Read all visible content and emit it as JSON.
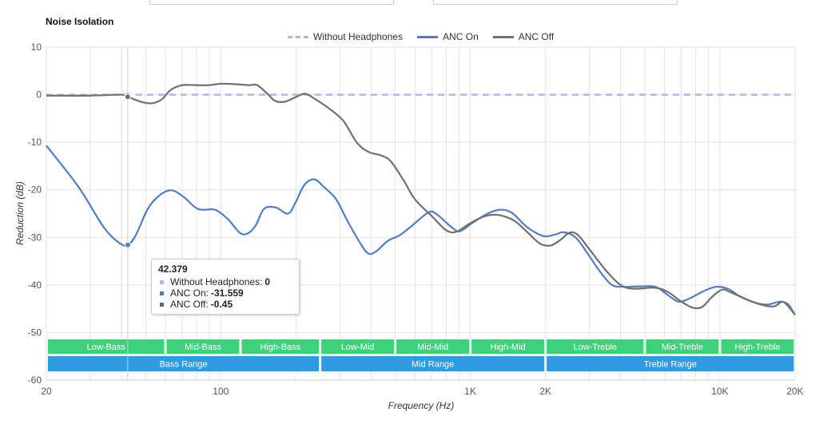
{
  "title": "Noise Isolation",
  "tooltip": {
    "x": "42.379",
    "rows": [
      {
        "label": "Without Headphones:",
        "value": "0",
        "color": "#aab8f2"
      },
      {
        "label": "ANC On:",
        "value": "-31.559",
        "color": "#4f7fc2"
      },
      {
        "label": "ANC Off:",
        "value": "-0.45",
        "color": "#666666"
      }
    ]
  },
  "chart_data": {
    "type": "line",
    "title": "Noise Isolation",
    "xlabel": "Frequency (Hz)",
    "ylabel": "Reduction (dB)",
    "xscale": "log",
    "xlim": [
      20,
      20000
    ],
    "ylim": [
      -60,
      10
    ],
    "xticks": [
      {
        "v": 20,
        "label": "20"
      },
      {
        "v": 100,
        "label": "100"
      },
      {
        "v": 1000,
        "label": "1K"
      },
      {
        "v": 2000,
        "label": "2K"
      },
      {
        "v": 10000,
        "label": "10K"
      },
      {
        "v": 20000,
        "label": "20K"
      }
    ],
    "yticks": [
      10,
      0,
      -10,
      -20,
      -30,
      -40,
      -50,
      -60
    ],
    "legend_position": "top-center",
    "series": [
      {
        "name": "Without Headphones",
        "color": "#aab8f2",
        "dashed": true,
        "points": [
          [
            20,
            0
          ],
          [
            20000,
            0
          ]
        ]
      },
      {
        "name": "ANC On",
        "color": "#4f7fc2",
        "dashed": false,
        "points": [
          [
            20,
            -10.7
          ],
          [
            27,
            -19.5
          ],
          [
            34,
            -27.9
          ],
          [
            39.3,
            -31.2
          ],
          [
            42.4,
            -31.6
          ],
          [
            45.7,
            -29.5
          ],
          [
            51,
            -24
          ],
          [
            57,
            -21.1
          ],
          [
            63.5,
            -20.1
          ],
          [
            71,
            -21.5
          ],
          [
            79,
            -23.7
          ],
          [
            85,
            -24.2
          ],
          [
            95,
            -24.2
          ],
          [
            107,
            -26.2
          ],
          [
            119,
            -29
          ],
          [
            128,
            -29.2
          ],
          [
            138,
            -27.5
          ],
          [
            149,
            -24
          ],
          [
            166,
            -23.7
          ],
          [
            186,
            -25
          ],
          [
            200,
            -22.5
          ],
          [
            216,
            -19
          ],
          [
            237,
            -17.8
          ],
          [
            260,
            -19.5
          ],
          [
            290,
            -22
          ],
          [
            323,
            -26.7
          ],
          [
            362,
            -31.2
          ],
          [
            390,
            -33.4
          ],
          [
            420,
            -32.9
          ],
          [
            468,
            -30.7
          ],
          [
            523,
            -29.5
          ],
          [
            585,
            -27.5
          ],
          [
            677,
            -24.8
          ],
          [
            728,
            -25
          ],
          [
            843,
            -27.9
          ],
          [
            909,
            -28.7
          ],
          [
            1016,
            -27
          ],
          [
            1173,
            -25
          ],
          [
            1310,
            -24.2
          ],
          [
            1464,
            -24.8
          ],
          [
            1693,
            -27.9
          ],
          [
            1960,
            -29.7
          ],
          [
            2190,
            -29.4
          ],
          [
            2360,
            -28.9
          ],
          [
            2640,
            -30
          ],
          [
            2950,
            -33.4
          ],
          [
            3300,
            -37.1
          ],
          [
            3690,
            -40
          ],
          [
            4130,
            -40.4
          ],
          [
            4780,
            -40.3
          ],
          [
            5530,
            -40.4
          ],
          [
            6180,
            -42.1
          ],
          [
            6800,
            -43.5
          ],
          [
            7440,
            -43
          ],
          [
            8610,
            -41.3
          ],
          [
            9630,
            -40.4
          ],
          [
            10770,
            -40.8
          ],
          [
            12040,
            -42.4
          ],
          [
            13960,
            -43.8
          ],
          [
            15610,
            -44.1
          ],
          [
            17450,
            -43.5
          ],
          [
            18780,
            -44.1
          ],
          [
            20000,
            -46.3
          ]
        ]
      },
      {
        "name": "ANC Off",
        "color": "#707070",
        "dashed": false,
        "points": [
          [
            20,
            -0.2
          ],
          [
            30,
            -0.2
          ],
          [
            40,
            0
          ],
          [
            42.4,
            -0.45
          ],
          [
            48,
            -1.5
          ],
          [
            53,
            -1.8
          ],
          [
            58,
            -1
          ],
          [
            63,
            1
          ],
          [
            70,
            2
          ],
          [
            80,
            2
          ],
          [
            90,
            2
          ],
          [
            100,
            2.3
          ],
          [
            115,
            2.2
          ],
          [
            130,
            2
          ],
          [
            140,
            2
          ],
          [
            155,
            0
          ],
          [
            165,
            -1.3
          ],
          [
            180,
            -1.5
          ],
          [
            200,
            -0.5
          ],
          [
            218,
            0.2
          ],
          [
            240,
            -1
          ],
          [
            270,
            -2.8
          ],
          [
            310,
            -5.5
          ],
          [
            350,
            -10
          ],
          [
            390,
            -12
          ],
          [
            440,
            -12.8
          ],
          [
            480,
            -14
          ],
          [
            540,
            -18
          ],
          [
            600,
            -22
          ],
          [
            700,
            -25.5
          ],
          [
            800,
            -28.5
          ],
          [
            880,
            -28.8
          ],
          [
            1000,
            -27
          ],
          [
            1150,
            -25.5
          ],
          [
            1300,
            -25.3
          ],
          [
            1500,
            -26.5
          ],
          [
            1700,
            -29
          ],
          [
            1900,
            -31.3
          ],
          [
            2100,
            -31.7
          ],
          [
            2300,
            -30.5
          ],
          [
            2500,
            -29
          ],
          [
            2700,
            -29.5
          ],
          [
            3000,
            -32.5
          ],
          [
            3500,
            -37
          ],
          [
            4000,
            -40
          ],
          [
            4500,
            -40.8
          ],
          [
            5500,
            -40.6
          ],
          [
            6200,
            -41.5
          ],
          [
            7000,
            -43.5
          ],
          [
            7800,
            -44.8
          ],
          [
            8500,
            -44.6
          ],
          [
            9300,
            -42.5
          ],
          [
            10200,
            -41
          ],
          [
            11000,
            -41.5
          ],
          [
            13000,
            -43.2
          ],
          [
            15000,
            -44.3
          ],
          [
            16500,
            -44.5
          ],
          [
            18000,
            -43.6
          ],
          [
            20000,
            -46.3
          ]
        ]
      }
    ],
    "hover_x": 42.379,
    "bands": [
      {
        "label": "Low-Bass",
        "from": 20,
        "to": 60,
        "row": 1,
        "color": "#3cd27c"
      },
      {
        "label": "Mid-Bass",
        "from": 60,
        "to": 120,
        "row": 1,
        "color": "#3cd27c"
      },
      {
        "label": "High-Bass",
        "from": 120,
        "to": 250,
        "row": 1,
        "color": "#3cd27c"
      },
      {
        "label": "Low-Mid",
        "from": 250,
        "to": 500,
        "row": 1,
        "color": "#3cd27c"
      },
      {
        "label": "Mid-Mid",
        "from": 500,
        "to": 1000,
        "row": 1,
        "color": "#3cd27c"
      },
      {
        "label": "High-Mid",
        "from": 1000,
        "to": 2000,
        "row": 1,
        "color": "#3cd27c"
      },
      {
        "label": "Low-Treble",
        "from": 2000,
        "to": 5000,
        "row": 1,
        "color": "#3cd27c"
      },
      {
        "label": "Mid-Treble",
        "from": 5000,
        "to": 10000,
        "row": 1,
        "color": "#3cd27c"
      },
      {
        "label": "High-Treble",
        "from": 10000,
        "to": 20000,
        "row": 1,
        "color": "#3cd27c"
      },
      {
        "label": "Bass Range",
        "from": 20,
        "to": 250,
        "row": 2,
        "color": "#2f9be5"
      },
      {
        "label": "Mid Range",
        "from": 250,
        "to": 2000,
        "row": 2,
        "color": "#2f9be5"
      },
      {
        "label": "Treble Range",
        "from": 2000,
        "to": 20000,
        "row": 2,
        "color": "#2f9be5"
      }
    ]
  }
}
